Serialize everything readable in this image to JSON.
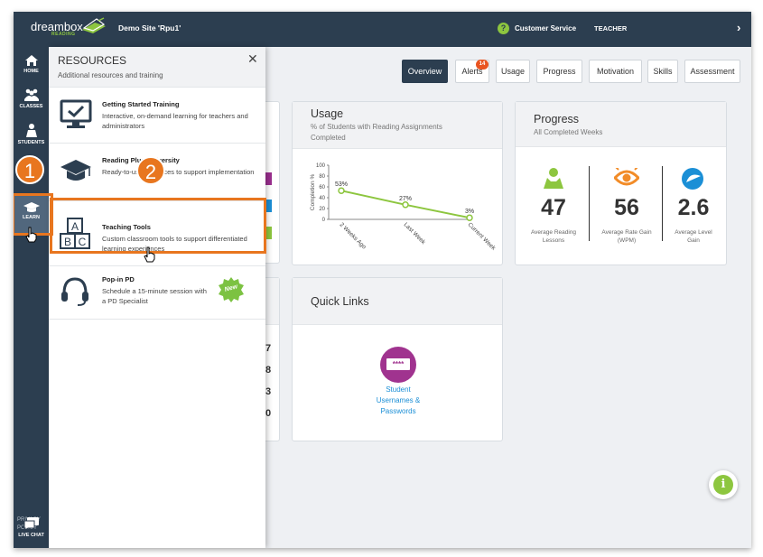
{
  "topbar": {
    "logo_text": "dreambox",
    "logo_sub": "READING",
    "site": "Demo Site 'Rpu1'",
    "customer_service": "Customer Service",
    "role": "TEACHER",
    "expand": "›"
  },
  "sidenav": {
    "home": "HOME",
    "classes": "CLASSES",
    "students": "STUDENTS",
    "learn": "LEARN",
    "privacy": "PRIVACY POLICY",
    "live_chat": "LIVE CHAT"
  },
  "tabs": [
    "Overview",
    "Alerts",
    "Usage",
    "Progress",
    "Motivation",
    "Skills",
    "Assessment"
  ],
  "alerts_badge": "14",
  "usage_card": {
    "title": "Usage",
    "subtitle": "% of Students with Reading Assignments Completed"
  },
  "chart_data": {
    "type": "line",
    "categories": [
      "2 Weeks Ago",
      "Last Week",
      "Current Week"
    ],
    "values": [
      53,
      27,
      3
    ],
    "labels": [
      "53%",
      "27%",
      "3%"
    ],
    "ylabel": "Completion %",
    "ylim": [
      0,
      100
    ],
    "yticks": [
      "100",
      "80",
      "60",
      "40",
      "20",
      "0"
    ],
    "color": "#8dc63f"
  },
  "progress_card": {
    "title": "Progress",
    "subtitle": "All Completed Weeks",
    "stats": [
      {
        "value": "47",
        "label": "Average Reading Lessons",
        "color": "#8dc63f"
      },
      {
        "value": "56",
        "label": "Average Rate Gain (WPM)",
        "color": "#f28c28"
      },
      {
        "value": "2.6",
        "label": "Average Level Gain",
        "color": "#1b8fd6"
      }
    ]
  },
  "quick_links": {
    "title": "Quick Links",
    "link_label": "Student Usernames & Passwords",
    "icon_text": "****"
  },
  "partial_numbers": [
    "7",
    "8",
    "3",
    "0"
  ],
  "resources": {
    "title": "RESOURCES",
    "subtitle": "Additional resources and training",
    "close": "✕",
    "items": [
      {
        "title": "Getting Started Training",
        "desc": "Interactive, on-demand learning for teachers and administrators"
      },
      {
        "title": "Reading Plus University",
        "desc": "Ready-to-use resources to support implementation"
      },
      {
        "title": "Teaching Tools",
        "desc": "Custom classroom tools to support differentiated learning experiences"
      },
      {
        "title": "Pop-in PD",
        "desc": "Schedule a 15-minute session with a PD Specialist",
        "badge": "New"
      }
    ]
  },
  "callouts": [
    "1",
    "2"
  ],
  "info_button": "i"
}
